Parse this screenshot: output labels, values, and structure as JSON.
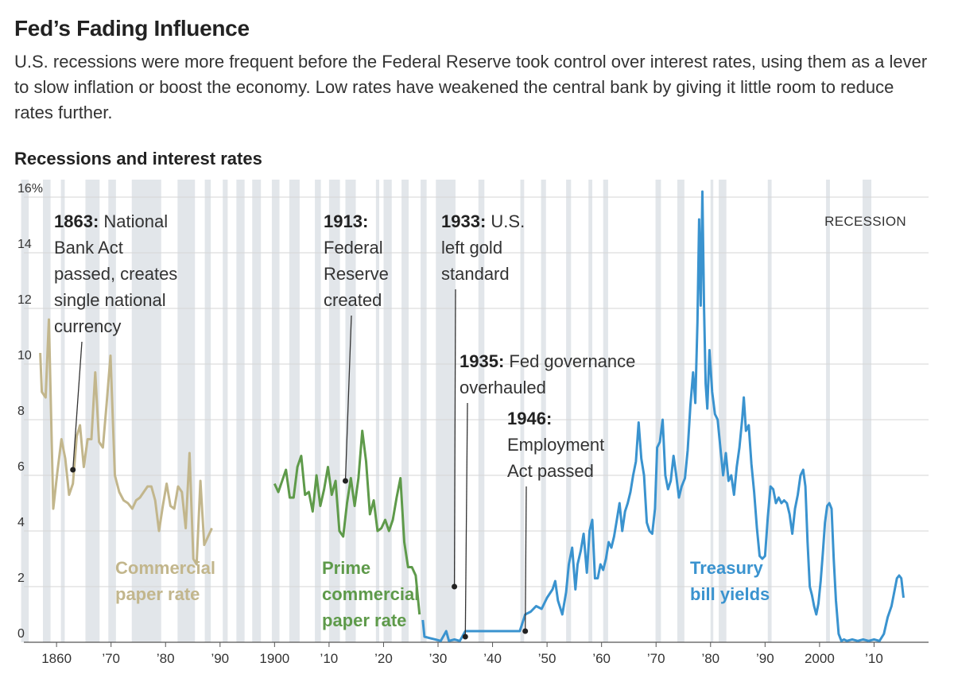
{
  "headline": "Fed’s Fading Influence",
  "dek": "U.S. recessions were more frequent before the Federal Reserve took control over interest rates, using them as a lever to slow inflation or boost the economy. Low rates have weakened the central bank by giving it little room to reduce rates further.",
  "chart_data": {
    "type": "line",
    "title": "Recessions and interest rates",
    "ylim": [
      0,
      16
    ],
    "xlim": [
      1854,
      2020
    ],
    "yticks": [
      {
        "value": 16,
        "label": "16%"
      },
      {
        "value": 14,
        "label": "14"
      },
      {
        "value": 12,
        "label": "12"
      },
      {
        "value": 10,
        "label": "10"
      },
      {
        "value": 8,
        "label": "8"
      },
      {
        "value": 6,
        "label": "6"
      },
      {
        "value": 4,
        "label": "4"
      },
      {
        "value": 2,
        "label": "2"
      },
      {
        "value": 0,
        "label": "0"
      }
    ],
    "xticks": [
      {
        "value": 1860,
        "label": "1860"
      },
      {
        "value": 1870,
        "label": "’70"
      },
      {
        "value": 1880,
        "label": "’80"
      },
      {
        "value": 1890,
        "label": "’90"
      },
      {
        "value": 1900,
        "label": "1900"
      },
      {
        "value": 1910,
        "label": "’10"
      },
      {
        "value": 1920,
        "label": "’20"
      },
      {
        "value": 1930,
        "label": "’30"
      },
      {
        "value": 1940,
        "label": "’40"
      },
      {
        "value": 1950,
        "label": "’50"
      },
      {
        "value": 1960,
        "label": "’60"
      },
      {
        "value": 1970,
        "label": "’70"
      },
      {
        "value": 1980,
        "label": "’80"
      },
      {
        "value": 1990,
        "label": "’90"
      },
      {
        "value": 2000,
        "label": "2000"
      },
      {
        "value": 2010,
        "label": "’10"
      }
    ],
    "legend": {
      "label": "RECESSION",
      "color": "#e2e6ea"
    },
    "recessions": [
      [
        1853.5,
        1854.9
      ],
      [
        1857.5,
        1858.9
      ],
      [
        1860.8,
        1861.5
      ],
      [
        1865.3,
        1867.9
      ],
      [
        1869.5,
        1870.9
      ],
      [
        1873.8,
        1879.2
      ],
      [
        1882.2,
        1885.4
      ],
      [
        1887.2,
        1888.3
      ],
      [
        1890.5,
        1891.4
      ],
      [
        1893.0,
        1894.5
      ],
      [
        1895.9,
        1897.5
      ],
      [
        1899.5,
        1900.9
      ],
      [
        1902.7,
        1904.6
      ],
      [
        1907.4,
        1908.5
      ],
      [
        1910.0,
        1912.0
      ],
      [
        1913.0,
        1914.9
      ],
      [
        1918.6,
        1919.2
      ],
      [
        1920.0,
        1921.5
      ],
      [
        1923.3,
        1924.6
      ],
      [
        1926.8,
        1927.9
      ],
      [
        1929.6,
        1933.2
      ],
      [
        1937.4,
        1938.5
      ],
      [
        1945.1,
        1945.8
      ],
      [
        1948.9,
        1949.8
      ],
      [
        1953.5,
        1954.4
      ],
      [
        1957.6,
        1958.3
      ],
      [
        1960.3,
        1961.2
      ],
      [
        1969.9,
        1970.9
      ],
      [
        1973.9,
        1975.2
      ],
      [
        1980.0,
        1980.5
      ],
      [
        1981.5,
        1982.9
      ],
      [
        1990.5,
        1991.2
      ],
      [
        2001.2,
        2001.9
      ],
      [
        2007.9,
        2009.5
      ]
    ],
    "series": [
      {
        "name": "Commercial paper rate",
        "label_lines": [
          "Commercial",
          "paper rate"
        ],
        "color": "#c2b68c",
        "points": [
          [
            1857.0,
            10.4
          ],
          [
            1857.3,
            9.0
          ],
          [
            1858.0,
            8.8
          ],
          [
            1858.6,
            11.6
          ],
          [
            1859.4,
            4.8
          ],
          [
            1860.2,
            6.2
          ],
          [
            1860.9,
            7.3
          ],
          [
            1861.6,
            6.6
          ],
          [
            1862.3,
            5.3
          ],
          [
            1863.0,
            5.7
          ],
          [
            1863.7,
            7.4
          ],
          [
            1864.3,
            7.8
          ],
          [
            1865.0,
            6.3
          ],
          [
            1865.7,
            7.3
          ],
          [
            1866.4,
            7.3
          ],
          [
            1867.1,
            9.7
          ],
          [
            1867.8,
            7.2
          ],
          [
            1868.5,
            7.0
          ],
          [
            1869.2,
            8.6
          ],
          [
            1869.9,
            10.3
          ],
          [
            1870.7,
            6.0
          ],
          [
            1871.5,
            5.4
          ],
          [
            1872.3,
            5.1
          ],
          [
            1873.1,
            5.0
          ],
          [
            1873.9,
            4.8
          ],
          [
            1874.6,
            5.1
          ],
          [
            1875.3,
            5.2
          ],
          [
            1876.0,
            5.4
          ],
          [
            1876.7,
            5.6
          ],
          [
            1877.4,
            5.6
          ],
          [
            1878.1,
            5.1
          ],
          [
            1878.8,
            4.0
          ],
          [
            1879.5,
            4.9
          ],
          [
            1880.2,
            5.7
          ],
          [
            1880.9,
            4.9
          ],
          [
            1881.6,
            4.8
          ],
          [
            1882.3,
            5.6
          ],
          [
            1883.0,
            5.4
          ],
          [
            1883.7,
            4.1
          ],
          [
            1884.4,
            6.8
          ],
          [
            1885.1,
            3.0
          ],
          [
            1885.7,
            2.8
          ],
          [
            1886.4,
            5.8
          ],
          [
            1887.1,
            3.5
          ],
          [
            1887.8,
            3.8
          ],
          [
            1888.5,
            4.1
          ]
        ]
      },
      {
        "name": "Prime commercial paper rate",
        "label_lines": [
          "Prime",
          "commercial",
          "paper rate"
        ],
        "color": "#5e9a4a",
        "points": [
          [
            1900.0,
            5.7
          ],
          [
            1900.7,
            5.4
          ],
          [
            1901.4,
            5.8
          ],
          [
            1902.1,
            6.2
          ],
          [
            1902.8,
            5.2
          ],
          [
            1903.5,
            5.2
          ],
          [
            1904.2,
            6.3
          ],
          [
            1904.9,
            6.7
          ],
          [
            1905.6,
            5.3
          ],
          [
            1906.3,
            5.4
          ],
          [
            1907.0,
            4.7
          ],
          [
            1907.7,
            6.0
          ],
          [
            1908.4,
            4.9
          ],
          [
            1909.1,
            5.5
          ],
          [
            1909.8,
            6.3
          ],
          [
            1910.5,
            5.3
          ],
          [
            1911.2,
            5.8
          ],
          [
            1911.9,
            4.0
          ],
          [
            1912.6,
            3.8
          ],
          [
            1913.3,
            5.0
          ],
          [
            1914.0,
            5.9
          ],
          [
            1914.7,
            4.9
          ],
          [
            1915.4,
            5.9
          ],
          [
            1916.1,
            7.6
          ],
          [
            1916.8,
            6.5
          ],
          [
            1917.5,
            4.6
          ],
          [
            1918.2,
            5.1
          ],
          [
            1918.9,
            4.0
          ],
          [
            1919.6,
            4.1
          ],
          [
            1920.3,
            4.4
          ],
          [
            1921.0,
            4.0
          ],
          [
            1921.7,
            4.4
          ],
          [
            1922.4,
            5.2
          ],
          [
            1923.1,
            5.9
          ],
          [
            1923.8,
            3.6
          ],
          [
            1924.5,
            2.7
          ],
          [
            1925.2,
            2.7
          ],
          [
            1925.9,
            2.4
          ],
          [
            1926.6,
            1.0
          ]
        ]
      },
      {
        "name": "Treasury bill yields",
        "label_lines": [
          "Treasury",
          "bill yields"
        ],
        "color": "#3a93cf",
        "points": [
          [
            1927.2,
            0.8
          ],
          [
            1927.5,
            0.2
          ],
          [
            1928.5,
            0.15
          ],
          [
            1929.5,
            0.1
          ],
          [
            1930.5,
            0.05
          ],
          [
            1931.5,
            0.4
          ],
          [
            1932.0,
            0.05
          ],
          [
            1933.0,
            0.1
          ],
          [
            1934.0,
            0.05
          ],
          [
            1935.0,
            0.4
          ],
          [
            1936.0,
            0.4
          ],
          [
            1937.0,
            0.4
          ],
          [
            1938.0,
            0.4
          ],
          [
            1939.0,
            0.4
          ],
          [
            1940.0,
            0.4
          ],
          [
            1941.0,
            0.4
          ],
          [
            1942.0,
            0.4
          ],
          [
            1943.0,
            0.4
          ],
          [
            1944.0,
            0.4
          ],
          [
            1945.0,
            0.4
          ],
          [
            1946.0,
            1.0
          ],
          [
            1947.0,
            1.1
          ],
          [
            1948.0,
            1.3
          ],
          [
            1949.0,
            1.2
          ],
          [
            1950.0,
            1.6
          ],
          [
            1951.0,
            1.9
          ],
          [
            1951.5,
            2.2
          ],
          [
            1952.0,
            1.5
          ],
          [
            1952.8,
            1.0
          ],
          [
            1953.5,
            1.8
          ],
          [
            1954.0,
            2.8
          ],
          [
            1954.6,
            3.4
          ],
          [
            1955.2,
            1.9
          ],
          [
            1955.6,
            2.8
          ],
          [
            1956.2,
            3.3
          ],
          [
            1956.7,
            3.9
          ],
          [
            1957.3,
            2.5
          ],
          [
            1957.8,
            4.0
          ],
          [
            1958.3,
            4.4
          ],
          [
            1958.8,
            2.3
          ],
          [
            1959.3,
            2.3
          ],
          [
            1959.8,
            2.8
          ],
          [
            1960.3,
            2.6
          ],
          [
            1960.8,
            3.0
          ],
          [
            1961.3,
            3.6
          ],
          [
            1961.8,
            3.4
          ],
          [
            1962.3,
            3.8
          ],
          [
            1962.8,
            4.4
          ],
          [
            1963.3,
            5.0
          ],
          [
            1963.8,
            4.0
          ],
          [
            1964.3,
            4.7
          ],
          [
            1964.8,
            5.0
          ],
          [
            1965.3,
            5.4
          ],
          [
            1965.8,
            6.0
          ],
          [
            1966.3,
            6.5
          ],
          [
            1966.8,
            7.9
          ],
          [
            1967.3,
            6.6
          ],
          [
            1967.8,
            6.0
          ],
          [
            1968.3,
            4.3
          ],
          [
            1968.8,
            4.0
          ],
          [
            1969.3,
            3.9
          ],
          [
            1969.8,
            4.8
          ],
          [
            1970.2,
            7.0
          ],
          [
            1970.7,
            7.2
          ],
          [
            1971.2,
            8.0
          ],
          [
            1971.7,
            6.0
          ],
          [
            1972.2,
            5.5
          ],
          [
            1972.7,
            5.8
          ],
          [
            1973.2,
            6.7
          ],
          [
            1973.7,
            6.0
          ],
          [
            1974.2,
            5.2
          ],
          [
            1974.7,
            5.6
          ],
          [
            1975.3,
            5.9
          ],
          [
            1975.8,
            6.9
          ],
          [
            1976.3,
            8.5
          ],
          [
            1976.8,
            9.7
          ],
          [
            1977.2,
            8.6
          ],
          [
            1977.6,
            11.5
          ],
          [
            1977.9,
            15.2
          ],
          [
            1978.2,
            12.1
          ],
          [
            1978.5,
            16.2
          ],
          [
            1978.8,
            12.0
          ],
          [
            1979.1,
            9.3
          ],
          [
            1979.4,
            8.4
          ],
          [
            1979.8,
            10.5
          ],
          [
            1980.3,
            9.0
          ],
          [
            1980.8,
            8.2
          ],
          [
            1981.3,
            8.0
          ],
          [
            1981.8,
            7.0
          ],
          [
            1982.3,
            6.0
          ],
          [
            1982.8,
            6.8
          ],
          [
            1983.3,
            5.8
          ],
          [
            1983.8,
            6.0
          ],
          [
            1984.3,
            5.3
          ],
          [
            1984.8,
            6.3
          ],
          [
            1985.3,
            7.0
          ],
          [
            1985.8,
            8.0
          ],
          [
            1986.1,
            8.8
          ],
          [
            1986.5,
            7.6
          ],
          [
            1987.0,
            7.8
          ],
          [
            1987.5,
            6.4
          ],
          [
            1988.0,
            5.4
          ],
          [
            1988.5,
            4.1
          ],
          [
            1989.0,
            3.1
          ],
          [
            1989.5,
            3.0
          ],
          [
            1990.0,
            3.1
          ],
          [
            1990.5,
            4.5
          ],
          [
            1991.0,
            5.6
          ],
          [
            1991.5,
            5.5
          ],
          [
            1992.0,
            5.0
          ],
          [
            1992.5,
            5.2
          ],
          [
            1993.0,
            5.0
          ],
          [
            1993.5,
            5.1
          ],
          [
            1994.0,
            5.0
          ],
          [
            1994.5,
            4.6
          ],
          [
            1995.0,
            3.9
          ],
          [
            1995.5,
            4.8
          ],
          [
            1996.0,
            5.3
          ],
          [
            1996.5,
            6.0
          ],
          [
            1997.0,
            6.2
          ],
          [
            1997.4,
            5.6
          ],
          [
            1997.8,
            3.6
          ],
          [
            1998.2,
            2.0
          ],
          [
            1998.6,
            1.7
          ],
          [
            1999.0,
            1.3
          ],
          [
            1999.4,
            1.0
          ],
          [
            1999.8,
            1.4
          ],
          [
            2000.2,
            2.2
          ],
          [
            2000.6,
            3.2
          ],
          [
            2001.0,
            4.3
          ],
          [
            2001.4,
            4.9
          ],
          [
            2001.8,
            5.0
          ],
          [
            2002.2,
            4.8
          ],
          [
            2002.6,
            3.0
          ],
          [
            2003.0,
            1.5
          ],
          [
            2003.5,
            0.3
          ],
          [
            2004.0,
            0.05
          ],
          [
            2004.5,
            0.1
          ],
          [
            2005.0,
            0.05
          ],
          [
            2006.0,
            0.1
          ],
          [
            2007.0,
            0.05
          ],
          [
            2008.0,
            0.1
          ],
          [
            2009.0,
            0.05
          ],
          [
            2010.0,
            0.1
          ],
          [
            2011.0,
            0.05
          ],
          [
            2011.8,
            0.3
          ],
          [
            2012.5,
            0.9
          ],
          [
            2013.2,
            1.3
          ],
          [
            2013.8,
            1.9
          ],
          [
            2014.2,
            2.3
          ],
          [
            2014.6,
            2.4
          ],
          [
            2015.0,
            2.3
          ],
          [
            2015.4,
            1.6
          ]
        ]
      }
    ],
    "annotations": [
      {
        "year": "1863:",
        "lines": [
          "National",
          "Bank Act",
          "passed, creates",
          "single national",
          "currency"
        ],
        "x": 1863,
        "y": 6.2
      },
      {
        "year": "1913:",
        "lines": [
          "Federal",
          "Reserve",
          "created"
        ],
        "x": 1913,
        "y": 5.8
      },
      {
        "year": "1933:",
        "lines": [
          "U.S.",
          "left gold",
          "standard"
        ],
        "x": 1933,
        "y": 2.0
      },
      {
        "year": "1935:",
        "lines": [
          "Fed governance",
          "overhauled"
        ],
        "x": 1935,
        "y": 0.2
      },
      {
        "year": "1946:",
        "lines": [
          "Employment",
          "Act passed"
        ],
        "x": 1946,
        "y": 0.4
      }
    ]
  }
}
